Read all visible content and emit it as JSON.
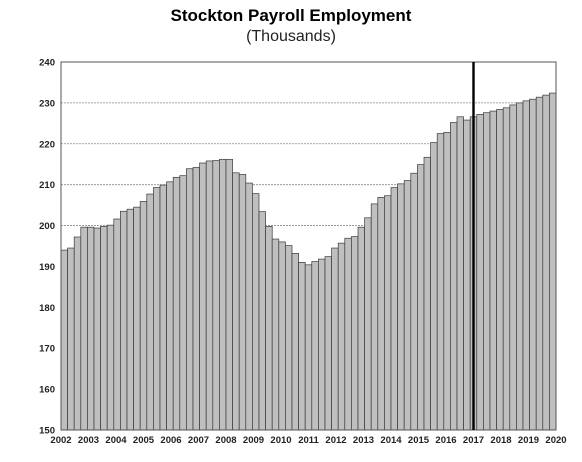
{
  "chart_data": {
    "type": "bar",
    "title": "Stockton Payroll Employment",
    "subtitle": "(Thousands)",
    "xlabel": "",
    "ylabel": "",
    "ylim": [
      150,
      240
    ],
    "yticks": [
      150,
      160,
      170,
      180,
      190,
      200,
      210,
      220,
      230,
      240
    ],
    "xtick_labels": [
      "2002",
      "2003",
      "2004",
      "2005",
      "2006",
      "2007",
      "2008",
      "2009",
      "2010",
      "2011",
      "2012",
      "2013",
      "2014",
      "2015",
      "2016",
      "2017",
      "2018",
      "2019",
      "2020"
    ],
    "x_start": 2002,
    "x_end": 2020,
    "bars_per_year": 4,
    "grid": "horizontal",
    "legend": "none",
    "bar_color": "#bfbfbf",
    "divider_year": 2017,
    "values": [
      194.0,
      194.5,
      197.2,
      199.6,
      199.6,
      199.4,
      199.8,
      200.1,
      201.6,
      203.5,
      204.0,
      204.5,
      205.9,
      207.7,
      209.3,
      209.9,
      210.7,
      211.8,
      212.2,
      213.9,
      214.2,
      215.3,
      215.8,
      215.9,
      216.2,
      216.2,
      212.9,
      212.5,
      210.4,
      207.8,
      203.4,
      199.8,
      196.7,
      196.0,
      195.1,
      193.2,
      191.0,
      190.4,
      191.2,
      191.8,
      192.4,
      194.5,
      195.7,
      196.9,
      197.3,
      199.6,
      201.9,
      205.3,
      206.9,
      207.3,
      209.3,
      210.2,
      211.0,
      212.8,
      214.9,
      216.7,
      220.3,
      222.5,
      222.8,
      225.2,
      226.6,
      225.8,
      226.6,
      227.2,
      227.6,
      228.0,
      228.4,
      228.8,
      229.5,
      230.0,
      230.5,
      230.9,
      231.4,
      231.9,
      232.4
    ]
  }
}
